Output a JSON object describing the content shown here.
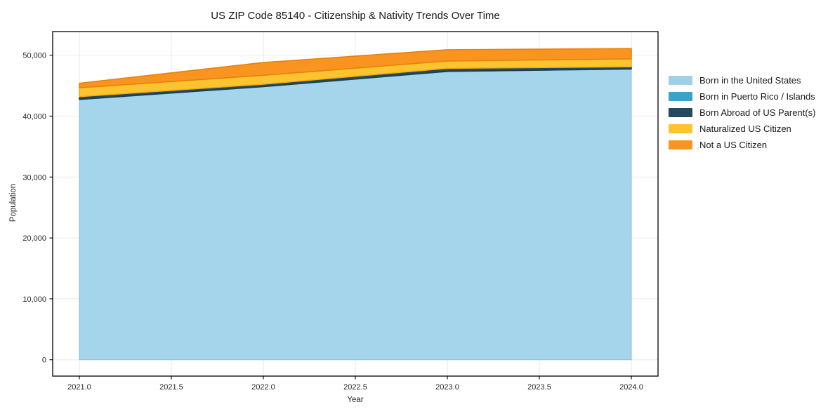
{
  "figure": {
    "background": "#ffffff",
    "text_color": "#262626",
    "grid_color": "#eaeaea",
    "spine_color": "#000000"
  },
  "chart_data": {
    "type": "area",
    "stacked": true,
    "title": "US ZIP Code 85140 - Citizenship & Nativity Trends Over Time",
    "xlabel": "Year",
    "ylabel": "Population",
    "x": [
      2021,
      2022,
      2023,
      2024
    ],
    "series": [
      {
        "name": "Born in the United States",
        "color": "#a5d5ea",
        "legend_color": "#9fd0e6",
        "edge": "#8fc2da",
        "values": [
          42700,
          44800,
          47300,
          47700
        ]
      },
      {
        "name": "Born in Puerto Rico / Islands",
        "color": "#3ba4c4",
        "legend_color": "#3ba4c4",
        "edge": "#2f93b2",
        "values": [
          50,
          50,
          50,
          50
        ]
      },
      {
        "name": "Born Abroad of US Parent(s)",
        "color": "#234a5d",
        "legend_color": "#234a5d",
        "edge": "#1c3e4f",
        "values": [
          450,
          400,
          500,
          350
        ]
      },
      {
        "name": "Naturalized US Citizen",
        "color": "#fdc42f",
        "legend_color": "#fdc42f",
        "edge": "#f2ae13",
        "values": [
          1450,
          1450,
          1200,
          1300
        ]
      },
      {
        "name": "Not a US Citizen",
        "color": "#f8941f",
        "legend_color": "#f8941f",
        "edge": "#e8820e",
        "values": [
          750,
          2100,
          1850,
          1700
        ]
      }
    ],
    "stack_totals": [
      45400,
      48800,
      50900,
      51100
    ],
    "xticks": {
      "values": [
        2021.0,
        2021.5,
        2022.0,
        2022.5,
        2023.0,
        2023.5,
        2024.0
      ],
      "labels": [
        "2021.0",
        "2021.5",
        "2022.0",
        "2022.5",
        "2023.0",
        "2023.5",
        "2024.0"
      ]
    },
    "yticks": {
      "values": [
        0,
        10000,
        20000,
        30000,
        40000,
        50000
      ],
      "labels": [
        "0",
        "10,000",
        "20,000",
        "30,000",
        "40,000",
        "50,000"
      ]
    },
    "xlim": [
      2020.855,
      2024.145
    ],
    "ylim": [
      -2685,
      53880
    ],
    "grid": true,
    "legend_position": "outside-right"
  }
}
